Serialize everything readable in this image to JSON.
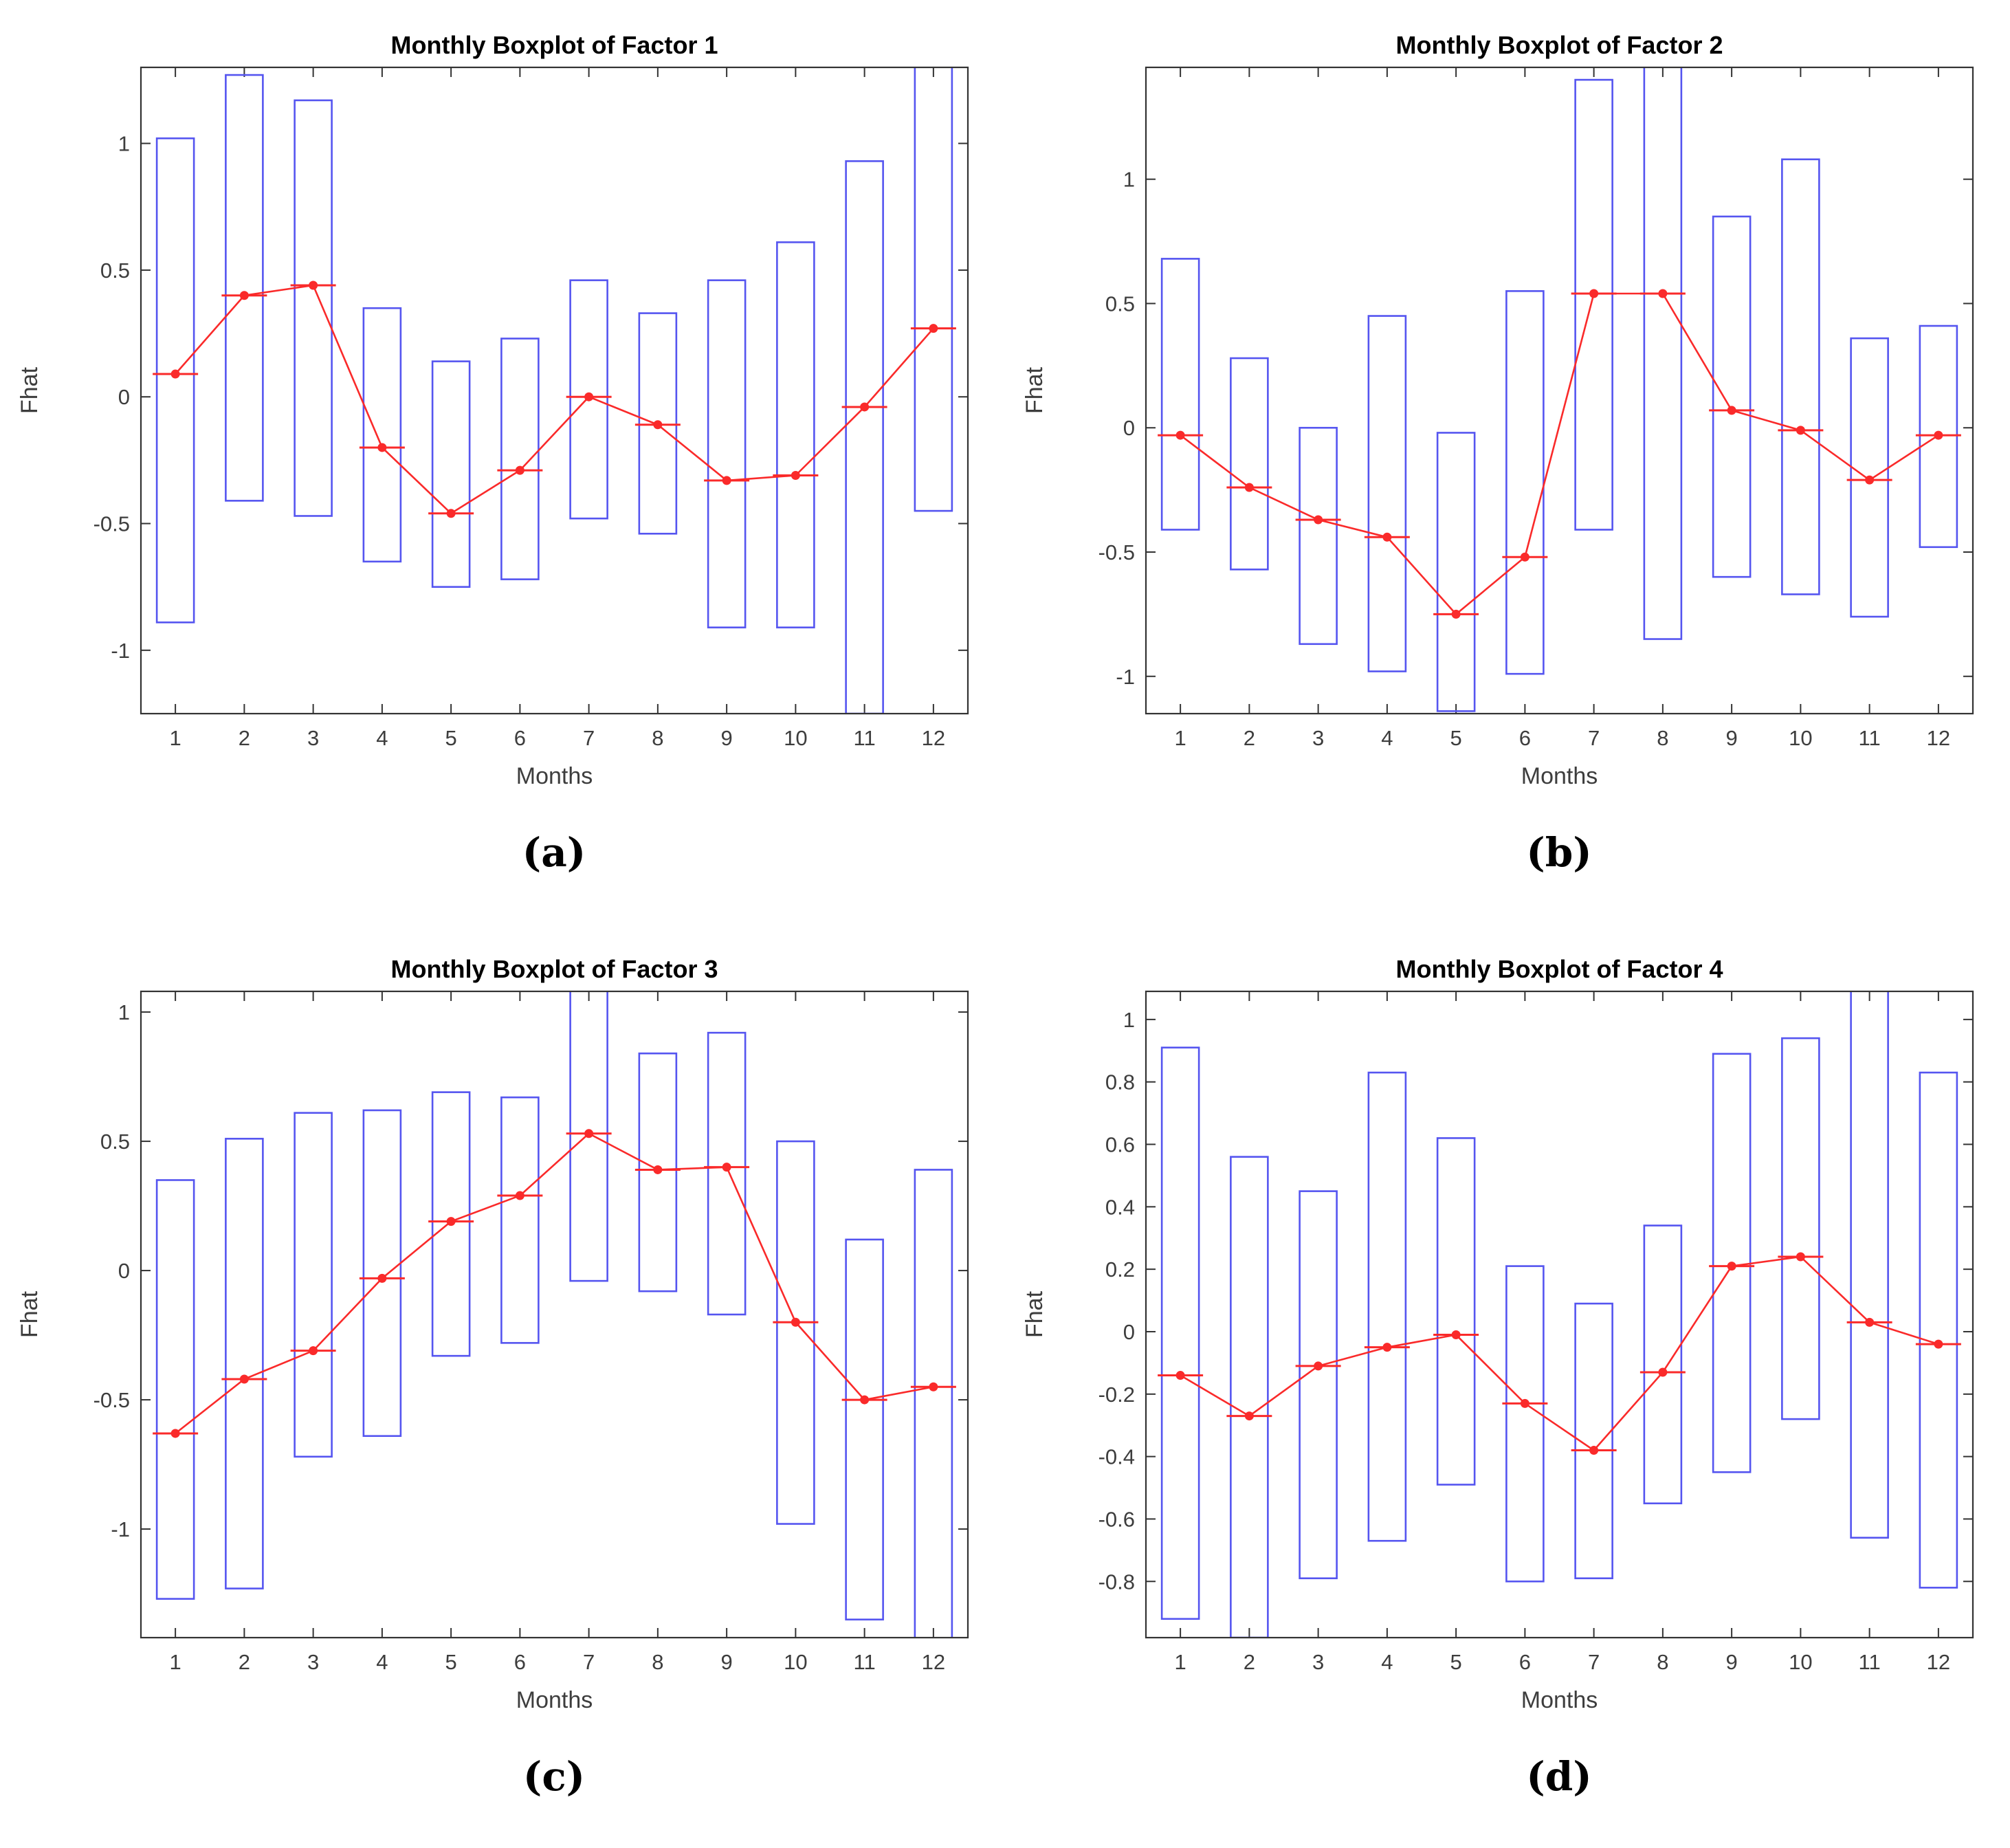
{
  "figure": {
    "background": "#ffffff",
    "description": "2x2 grid of monthly boxplots for four factors"
  },
  "styles": {
    "box_color": "#5555f0",
    "median_color": "#fa2a2a",
    "axis_color": "#333333",
    "tick_label_color": "#3d3d3d",
    "title_color": "#000000"
  },
  "chart_data": [
    {
      "type": "boxplot",
      "title": "Monthly Boxplot of Factor 1",
      "xlabel": "Months",
      "ylabel": "Fhat",
      "caption": "(a)",
      "legend": null,
      "grid": false,
      "categories": [
        1,
        2,
        3,
        4,
        5,
        6,
        7,
        8,
        9,
        10,
        11,
        12
      ],
      "yticks": [
        -1,
        -0.5,
        0,
        0.5,
        1
      ],
      "ylim": [
        -1.25,
        1.3
      ],
      "box_low": [
        -0.89,
        -0.41,
        -0.47,
        -0.65,
        -0.75,
        -0.72,
        -0.48,
        -0.54,
        -0.91,
        -0.91,
        -1.25,
        -0.45
      ],
      "box_high": [
        1.02,
        1.27,
        1.17,
        0.35,
        0.14,
        0.23,
        0.46,
        0.33,
        0.46,
        0.61,
        0.93,
        1.35
      ],
      "median": [
        0.09,
        0.4,
        0.44,
        -0.2,
        -0.46,
        -0.29,
        0.0,
        -0.11,
        -0.33,
        -0.31,
        -0.04,
        0.27
      ]
    },
    {
      "type": "boxplot",
      "title": "Monthly Boxplot of Factor 2",
      "xlabel": "Months",
      "ylabel": "Fhat",
      "caption": "(b)",
      "legend": null,
      "grid": false,
      "categories": [
        1,
        2,
        3,
        4,
        5,
        6,
        7,
        8,
        9,
        10,
        11,
        12
      ],
      "yticks": [
        -1,
        -0.5,
        0,
        0.5,
        1
      ],
      "ylim": [
        -1.15,
        1.45
      ],
      "box_low": [
        -0.41,
        -0.57,
        -0.87,
        -0.98,
        -1.14,
        -0.99,
        -0.41,
        -0.85,
        -0.6,
        -0.67,
        -0.76,
        -0.48
      ],
      "box_high": [
        0.68,
        0.28,
        0.0,
        0.45,
        -0.02,
        0.55,
        1.4,
        1.52,
        0.85,
        1.08,
        0.36,
        0.41
      ],
      "median": [
        -0.03,
        -0.24,
        -0.37,
        -0.44,
        -0.75,
        -0.52,
        0.54,
        0.54,
        0.07,
        -0.01,
        -0.21,
        -0.03
      ]
    },
    {
      "type": "boxplot",
      "title": "Monthly Boxplot of Factor 3",
      "xlabel": "Months",
      "ylabel": "Fhat",
      "caption": "(c)",
      "legend": null,
      "grid": false,
      "categories": [
        1,
        2,
        3,
        4,
        5,
        6,
        7,
        8,
        9,
        10,
        11,
        12
      ],
      "yticks": [
        -1,
        -0.5,
        0,
        0.5,
        1
      ],
      "ylim": [
        -1.42,
        1.08
      ],
      "box_low": [
        -1.27,
        -1.23,
        -0.72,
        -0.64,
        -0.33,
        -0.28,
        -0.04,
        -0.08,
        -0.17,
        -0.98,
        -1.35,
        -1.52
      ],
      "box_high": [
        0.35,
        0.51,
        0.61,
        0.62,
        0.69,
        0.67,
        1.15,
        0.84,
        0.92,
        0.5,
        0.12,
        0.39
      ],
      "median": [
        -0.63,
        -0.42,
        -0.31,
        -0.03,
        0.19,
        0.29,
        0.53,
        0.39,
        0.4,
        -0.2,
        -0.5,
        -0.45
      ]
    },
    {
      "type": "boxplot",
      "title": "Monthly Boxplot of Factor 4",
      "xlabel": "Months",
      "ylabel": "Fhat",
      "caption": "(d)",
      "legend": null,
      "grid": false,
      "categories": [
        1,
        2,
        3,
        4,
        5,
        6,
        7,
        8,
        9,
        10,
        11,
        12
      ],
      "yticks": [
        -0.8,
        -0.6,
        -0.4,
        -0.2,
        0,
        0.2,
        0.4,
        0.6,
        0.8,
        1
      ],
      "ylim": [
        -0.98,
        1.09
      ],
      "box_low": [
        -0.92,
        -0.98,
        -0.79,
        -0.67,
        -0.49,
        -0.8,
        -0.79,
        -0.55,
        -0.45,
        -0.28,
        -0.66,
        -0.82
      ],
      "box_high": [
        0.91,
        0.56,
        0.45,
        0.83,
        0.62,
        0.21,
        0.09,
        0.34,
        0.89,
        0.94,
        1.15,
        0.83
      ],
      "median": [
        -0.14,
        -0.27,
        -0.11,
        -0.05,
        -0.01,
        -0.23,
        -0.38,
        -0.13,
        0.21,
        0.24,
        0.03,
        -0.04
      ]
    }
  ]
}
